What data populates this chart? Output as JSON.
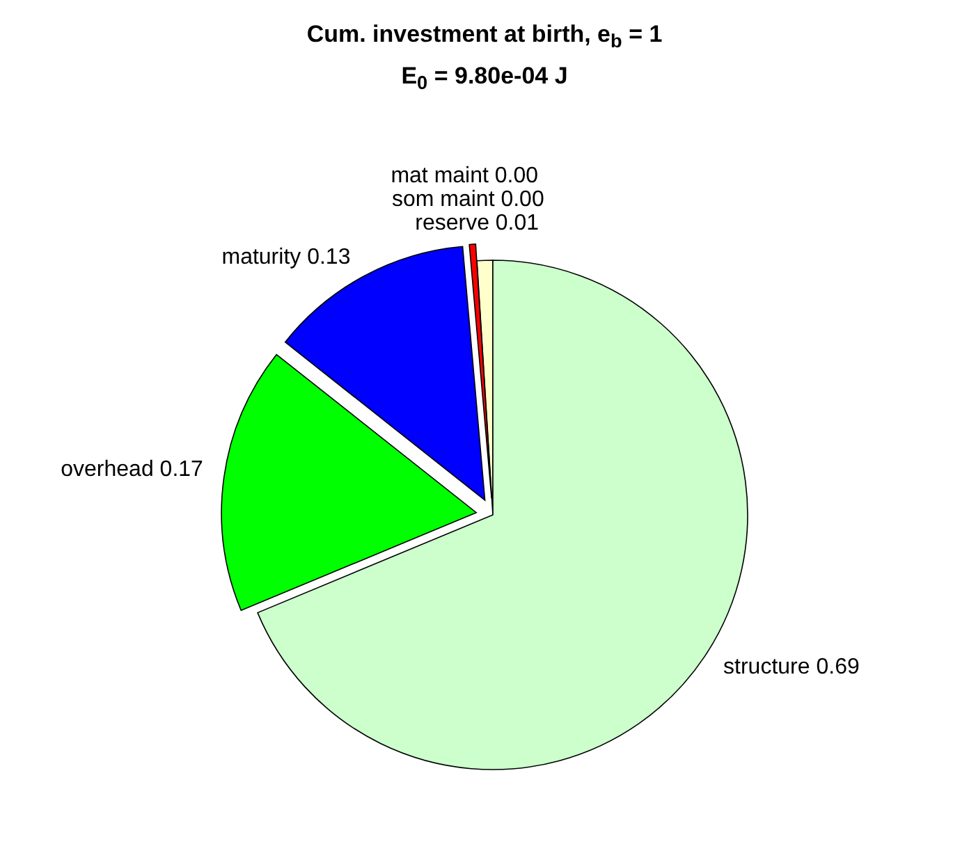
{
  "chart_data": {
    "type": "pie",
    "title": "Cum. investment at birth, e$_{b}$ = 1",
    "subtitle": "E$_{0}$ = 9.80e-04 J",
    "categories": [
      "reserve",
      "som maint",
      "mat maint",
      "maturity",
      "overhead",
      "structure"
    ],
    "values": [
      0.01,
      0,
      0.004,
      0.13,
      0.17,
      0.69
    ],
    "value_labels": [
      "0.01",
      "0.00",
      "0.00",
      "0.13",
      "0.17",
      "0.69"
    ],
    "colors": [
      "#ffffcc",
      "#ff00ff",
      "#ff0000",
      "#0000ff",
      "#00ff00",
      "#ccffcc"
    ]
  }
}
